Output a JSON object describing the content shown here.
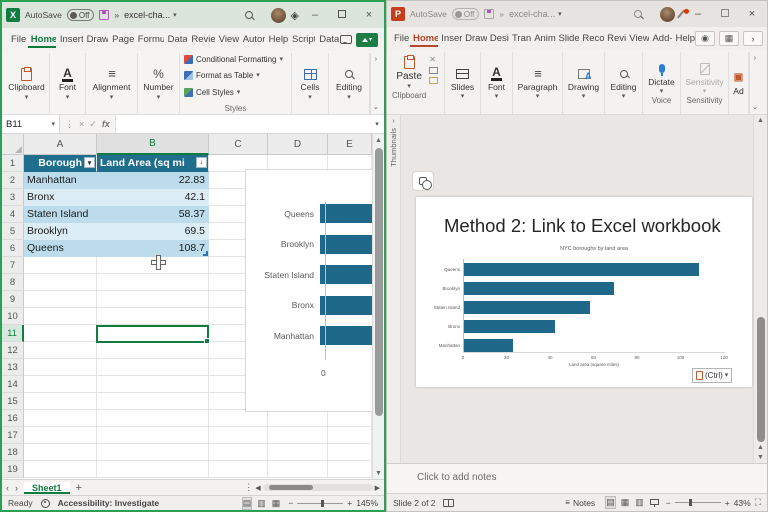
{
  "colors": {
    "excel_green": "#107c41",
    "excel_window_border": "#2aa150",
    "table_header_fill": "#1f6e8e",
    "table_band_dark": "#bcdcec",
    "table_band_light": "#dcecf5",
    "bar_fill": "#1f6889",
    "ppt_accent": "#b7472a"
  },
  "excel": {
    "titlebar": {
      "autosave": "AutoSave",
      "autosave_state": "Off",
      "overflow": "»",
      "doc": "excel-cha..."
    },
    "menu": [
      "File",
      "Home",
      "Insert",
      "Draw",
      "Page",
      "Formu",
      "Data",
      "Revie",
      "View",
      "Autor",
      "Help",
      "Script",
      "Data"
    ],
    "active_menu": "Home",
    "ribbon": {
      "groups": [
        "Clipboard",
        "Font",
        "Alignment",
        "Number"
      ],
      "styles": {
        "label": "Styles",
        "items": [
          "Conditional Formatting",
          "Format as Table",
          "Cell Styles"
        ]
      },
      "right_groups": [
        "Cells",
        "Editing"
      ]
    },
    "formula": {
      "name_box": "B11",
      "fx": "fx"
    },
    "grid": {
      "columns": [
        "A",
        "B",
        "C",
        "D",
        "E"
      ],
      "selected_column": "B",
      "selected_cell": "B11",
      "visible_rows": 19
    },
    "table": {
      "headers": [
        "Borough",
        "Land Area (sq mi"
      ],
      "rows": [
        {
          "borough": "Manhattan",
          "area": "22.83"
        },
        {
          "borough": "Bronx",
          "area": "42.1"
        },
        {
          "borough": "Staten Island",
          "area": "58.37"
        },
        {
          "borough": "Brooklyn",
          "area": "69.5"
        },
        {
          "borough": "Queens",
          "area": "108.7"
        }
      ]
    },
    "tabs": {
      "sheet": "Sheet1",
      "add": "+"
    },
    "status": {
      "ready": "Ready",
      "accessibility": "Accessibility: Investigate",
      "zoom": "145%"
    }
  },
  "powerpoint": {
    "titlebar": {
      "autosave": "AutoSave",
      "autosave_state": "Off",
      "overflow": "»",
      "doc": "excel-cha..."
    },
    "menu": [
      "File",
      "Home",
      "Inser",
      "Draw",
      "Desi",
      "Tran",
      "Anim",
      "Slide",
      "Reco",
      "Revi",
      "View",
      "Add-",
      "Help"
    ],
    "active_menu": "Home",
    "ribbon": {
      "paste": "Paste",
      "clipboard_caption": "Clipboard",
      "collapsed_groups": [
        "Slides",
        "Font",
        "Paragraph",
        "Drawing",
        "Editing"
      ],
      "dictate": "Dictate",
      "voice_caption": "Voice",
      "sensitivity": "Sensitivity",
      "sensitivity_caption": "Sensitivity",
      "addins_clipped": "Ad"
    },
    "thumbnails_label": "Thumbnails",
    "slide": {
      "title": "Method 2: Link to Excel workbook"
    },
    "paste_options_label": "(Ctrl)",
    "notes_placeholder": "Click to add notes",
    "status": {
      "slide": "Slide 2 of 2",
      "notes": "Notes",
      "zoom": "43%"
    }
  },
  "chart_data": [
    {
      "id": "excel-embedded-chart",
      "type": "bar",
      "orientation": "horizontal",
      "title": "",
      "categories": [
        "Queens",
        "Brooklyn",
        "Staten Island",
        "Bronx",
        "Manhattan"
      ],
      "values": [
        108.7,
        69.5,
        58.37,
        42.1,
        22.83
      ],
      "visible_axis_label": "0",
      "bar_color": "#1f6889"
    },
    {
      "id": "ppt-slide-chart",
      "type": "bar",
      "orientation": "horizontal",
      "title": "NYC boroughs by land area",
      "categories": [
        "Queens",
        "Brooklyn",
        "Staten Island",
        "Bronx",
        "Manhattan"
      ],
      "values": [
        108.7,
        69.5,
        58.37,
        42.1,
        22.83
      ],
      "xlabel": "Land area (square miles)",
      "xlim": [
        0,
        120
      ],
      "xticks": [
        0,
        20,
        40,
        60,
        80,
        100,
        120
      ],
      "bar_color": "#1f6889",
      "grid": false,
      "legend": false
    }
  ]
}
